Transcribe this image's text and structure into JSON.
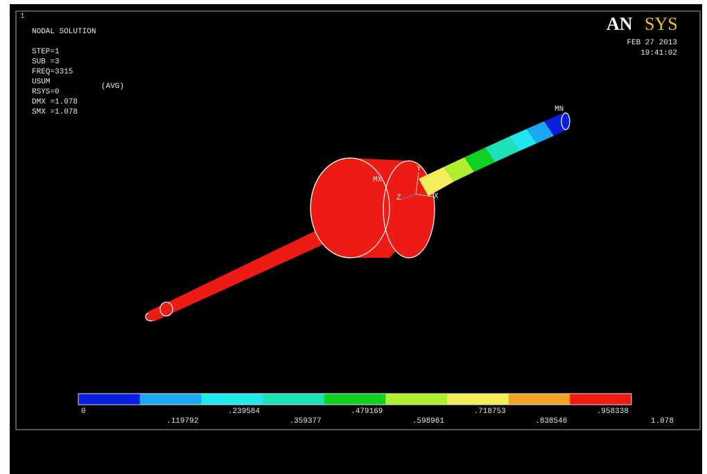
{
  "window_number": "1",
  "info": {
    "lines": [
      "NODAL SOLUTION",
      "",
      "STEP=1",
      "SUB =3",
      "FREQ=3315",
      "USUM",
      "RSYS=0",
      "DMX =1.078",
      "SMX =1.078"
    ],
    "avg": "(AVG)"
  },
  "logo": {
    "part1": "AN",
    "part2": "SYS"
  },
  "date": "FEB 27 2013",
  "time": "19:41:02",
  "markers": {
    "min": "MN",
    "max": "MX"
  },
  "triad": {
    "y": "Y",
    "z": "Z",
    "x": "X"
  },
  "legend": {
    "colors": [
      "#0a1ee0",
      "#1aa8f0",
      "#20e6ee",
      "#1de2b8",
      "#10d020",
      "#b0ee30",
      "#f4ee5a",
      "#f2a422",
      "#ee1a14"
    ],
    "labels": [
      "0",
      ".119792",
      ".239584",
      ".359377",
      ".479169",
      ".598961",
      ".718753",
      ".838546",
      ".958338",
      "1.078"
    ]
  }
}
